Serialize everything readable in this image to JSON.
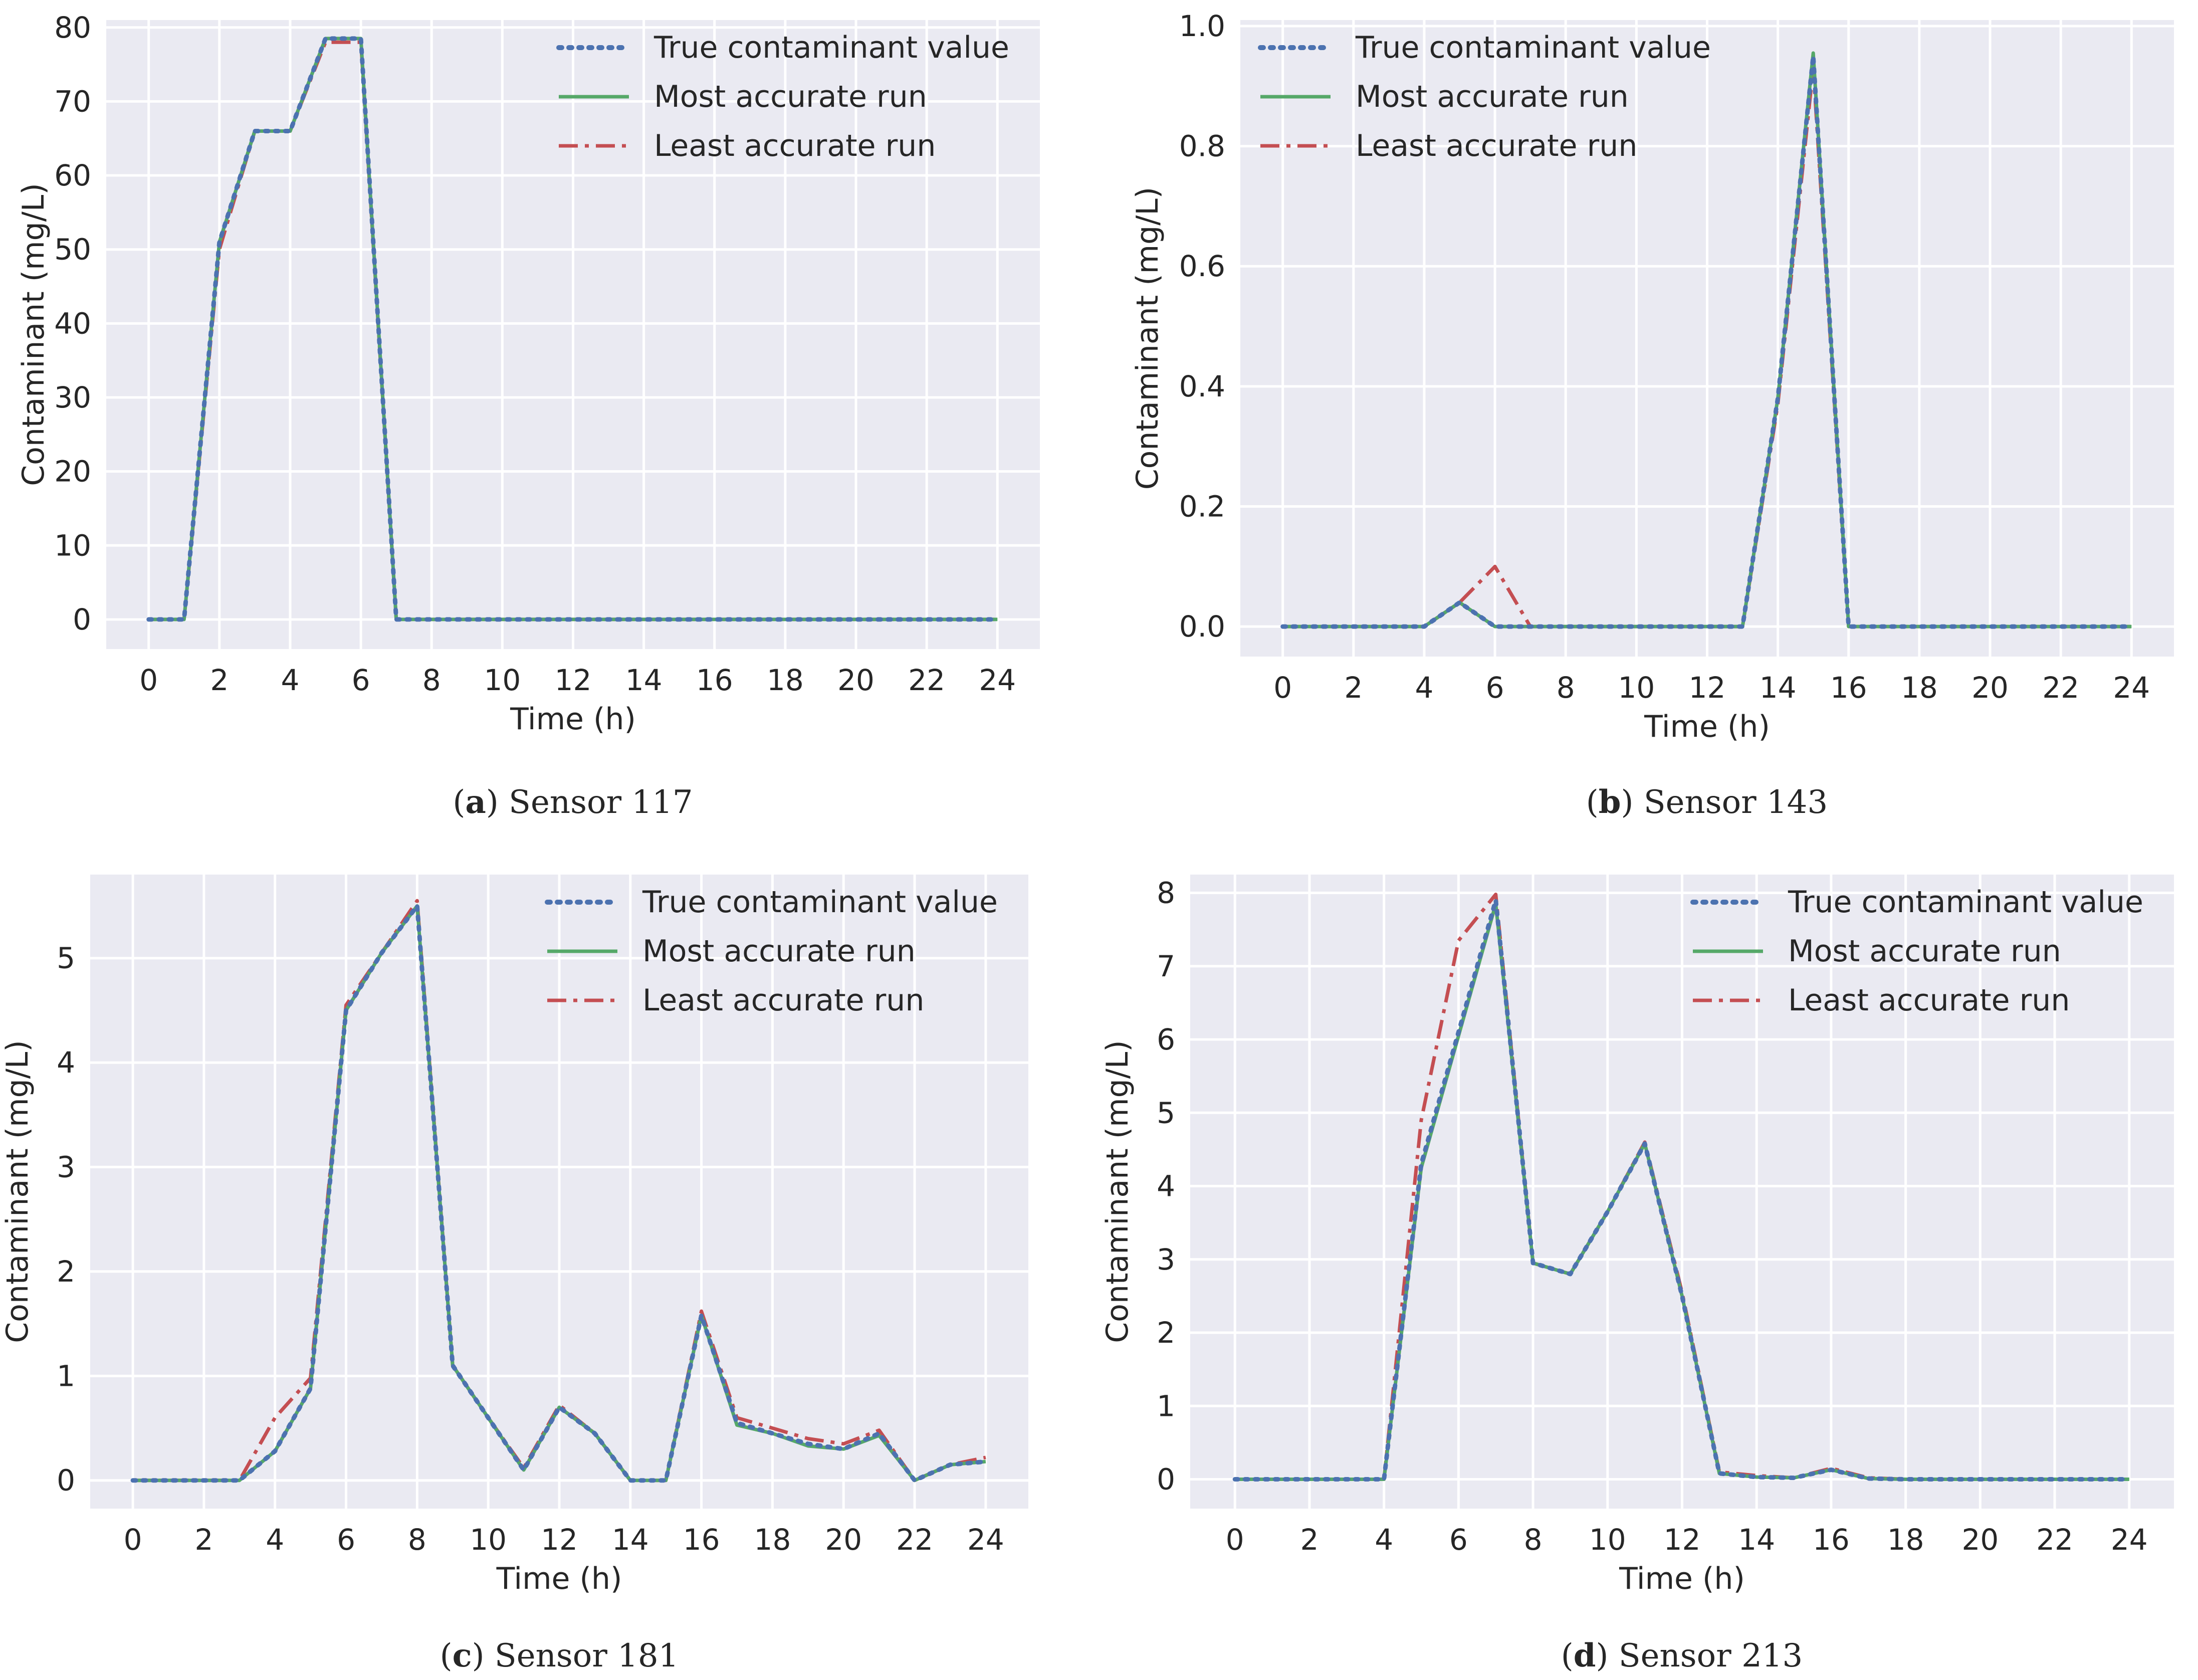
{
  "figure": {
    "colors": {
      "panel_bg": "#EAEAF2",
      "grid": "#FFFFFF",
      "text": "#262626",
      "true_series": "#4C72B0",
      "most_series": "#55A868",
      "least_series": "#C44E52"
    }
  },
  "chart_data": [
    {
      "type": "line",
      "caption_label": "a",
      "caption_text": "Sensor 117",
      "xlabel": "Time (h)",
      "ylabel": "Contaminant (mg/L)",
      "xlim": [
        -1.2,
        25.2
      ],
      "ylim": [
        -4,
        81
      ],
      "xticks": [
        0,
        2,
        4,
        6,
        8,
        10,
        12,
        14,
        16,
        18,
        20,
        22,
        24
      ],
      "yticks": [
        0,
        10,
        20,
        30,
        40,
        50,
        60,
        70,
        80
      ],
      "yticklabels": [
        "0",
        "10",
        "20",
        "30",
        "40",
        "50",
        "60",
        "70",
        "80"
      ],
      "legend_position": "top-right",
      "x": [
        0,
        1,
        2,
        3,
        4,
        5,
        6,
        7,
        8,
        9,
        10,
        11,
        12,
        13,
        14,
        15,
        16,
        17,
        18,
        19,
        20,
        21,
        22,
        23,
        24
      ],
      "series": [
        {
          "name": "True contaminant value",
          "style": "dotted",
          "color": "#4C72B0",
          "values": [
            0,
            0,
            51,
            66,
            66,
            78.5,
            78.5,
            0,
            0,
            0,
            0,
            0,
            0,
            0,
            0,
            0,
            0,
            0,
            0,
            0,
            0,
            0,
            0,
            0,
            0
          ]
        },
        {
          "name": "Most accurate run",
          "style": "solid",
          "color": "#55A868",
          "values": [
            0,
            0,
            51,
            66,
            66,
            78.5,
            78.5,
            0,
            0,
            0,
            0,
            0,
            0,
            0,
            0,
            0,
            0,
            0,
            0,
            0,
            0,
            0,
            0,
            0,
            0
          ]
        },
        {
          "name": "Least accurate run",
          "style": "dashdot",
          "color": "#C44E52",
          "values": [
            0,
            0,
            50,
            66,
            66,
            78,
            78,
            0,
            0,
            0,
            0,
            0,
            0,
            0,
            0,
            0,
            0,
            0,
            0,
            0,
            0,
            0,
            0,
            0,
            0
          ]
        }
      ]
    },
    {
      "type": "line",
      "caption_label": "b",
      "caption_text": "Sensor 143",
      "xlabel": "Time (h)",
      "ylabel": "Contaminant (mg/L)",
      "xlim": [
        -1.2,
        25.2
      ],
      "ylim": [
        -0.05,
        1.01
      ],
      "xticks": [
        0,
        2,
        4,
        6,
        8,
        10,
        12,
        14,
        16,
        18,
        20,
        22,
        24
      ],
      "yticks": [
        0,
        0.2,
        0.4,
        0.6,
        0.8,
        1.0
      ],
      "yticklabels": [
        "0.0",
        "0.2",
        "0.4",
        "0.6",
        "0.8",
        "1.0"
      ],
      "legend_position": "top-left",
      "x": [
        0,
        1,
        2,
        3,
        4,
        5,
        6,
        7,
        8,
        9,
        10,
        11,
        12,
        13,
        14,
        15,
        16,
        17,
        18,
        19,
        20,
        21,
        22,
        23,
        24
      ],
      "series": [
        {
          "name": "True contaminant value",
          "style": "dotted",
          "color": "#4C72B0",
          "values": [
            0,
            0,
            0,
            0,
            0,
            0.04,
            0,
            0,
            0,
            0,
            0,
            0,
            0,
            0,
            0.38,
            0.95,
            0,
            0,
            0,
            0,
            0,
            0,
            0,
            0,
            0
          ]
        },
        {
          "name": "Most accurate run",
          "style": "solid",
          "color": "#55A868",
          "values": [
            0,
            0,
            0,
            0,
            0,
            0.04,
            0,
            0,
            0,
            0,
            0,
            0,
            0,
            0,
            0.38,
            0.955,
            0,
            0,
            0,
            0,
            0,
            0,
            0,
            0,
            0
          ]
        },
        {
          "name": "Least accurate run",
          "style": "dashdot",
          "color": "#C44E52",
          "values": [
            0,
            0,
            0,
            0,
            0,
            0.04,
            0.1,
            0,
            0,
            0,
            0,
            0,
            0,
            0,
            0.37,
            0.93,
            0,
            0,
            0,
            0,
            0,
            0,
            0,
            0,
            0
          ]
        }
      ]
    },
    {
      "type": "line",
      "caption_label": "c",
      "caption_text": "Sensor 181",
      "xlabel": "Time (h)",
      "ylabel": "Contaminant (mg/L)",
      "xlim": [
        -1.2,
        25.2
      ],
      "ylim": [
        -0.27,
        5.8
      ],
      "xticks": [
        0,
        2,
        4,
        6,
        8,
        10,
        12,
        14,
        16,
        18,
        20,
        22,
        24
      ],
      "yticks": [
        0,
        1,
        2,
        3,
        4,
        5
      ],
      "yticklabels": [
        "0",
        "1",
        "2",
        "3",
        "4",
        "5"
      ],
      "legend_position": "top-right",
      "x": [
        0,
        1,
        2,
        3,
        4,
        5,
        6,
        7,
        8,
        9,
        10,
        11,
        12,
        13,
        14,
        15,
        16,
        17,
        18,
        19,
        20,
        21,
        22,
        23,
        24
      ],
      "series": [
        {
          "name": "True contaminant value",
          "style": "dotted",
          "color": "#4C72B0",
          "values": [
            0,
            0,
            0,
            0,
            0.28,
            0.88,
            4.5,
            5.05,
            5.5,
            1.1,
            0.6,
            0.1,
            0.7,
            0.45,
            0,
            0,
            1.58,
            0.55,
            0.45,
            0.35,
            0.3,
            0.45,
            0,
            0.15,
            0.18
          ]
        },
        {
          "name": "Most accurate run",
          "style": "solid",
          "color": "#55A868",
          "values": [
            0,
            0,
            0,
            0,
            0.28,
            0.88,
            4.5,
            5.05,
            5.5,
            1.1,
            0.6,
            0.1,
            0.7,
            0.45,
            0,
            0,
            1.58,
            0.53,
            0.45,
            0.33,
            0.3,
            0.43,
            0,
            0.15,
            0.18
          ]
        },
        {
          "name": "Least accurate run",
          "style": "dashdot",
          "color": "#C44E52",
          "values": [
            0,
            0,
            0,
            0,
            0.6,
            0.98,
            4.55,
            5.05,
            5.55,
            1.1,
            0.6,
            0.12,
            0.72,
            0.45,
            0,
            0,
            1.62,
            0.6,
            0.5,
            0.4,
            0.35,
            0.48,
            0,
            0.15,
            0.22
          ]
        }
      ]
    },
    {
      "type": "line",
      "caption_label": "d",
      "caption_text": "Sensor 213",
      "xlabel": "Time (h)",
      "ylabel": "Contaminant (mg/L)",
      "xlim": [
        -1.2,
        25.2
      ],
      "ylim": [
        -0.4,
        8.25
      ],
      "xticks": [
        0,
        2,
        4,
        6,
        8,
        10,
        12,
        14,
        16,
        18,
        20,
        22,
        24
      ],
      "yticks": [
        0,
        1,
        2,
        3,
        4,
        5,
        6,
        7,
        8
      ],
      "yticklabels": [
        "0",
        "1",
        "2",
        "3",
        "4",
        "5",
        "6",
        "7",
        "8"
      ],
      "legend_position": "top-right",
      "x": [
        0,
        1,
        2,
        3,
        4,
        5,
        6,
        7,
        8,
        9,
        10,
        11,
        12,
        13,
        14,
        15,
        16,
        17,
        18,
        19,
        20,
        21,
        22,
        23,
        24
      ],
      "series": [
        {
          "name": "True contaminant value",
          "style": "dotted",
          "color": "#4C72B0",
          "values": [
            0,
            0,
            0,
            0,
            0,
            4.3,
            6.1,
            7.9,
            2.95,
            2.8,
            3.65,
            4.58,
            2.5,
            0.08,
            0.03,
            0.02,
            0.13,
            0.01,
            0,
            0,
            0,
            0,
            0,
            0,
            0
          ]
        },
        {
          "name": "Most accurate run",
          "style": "solid",
          "color": "#55A868",
          "values": [
            0,
            0,
            0,
            0,
            0,
            4.25,
            6.05,
            7.85,
            2.95,
            2.8,
            3.65,
            4.58,
            2.5,
            0.08,
            0.03,
            0.02,
            0.13,
            0.01,
            0,
            0,
            0,
            0,
            0,
            0,
            0
          ]
        },
        {
          "name": "Least accurate run",
          "style": "dashdot",
          "color": "#C44E52",
          "values": [
            0,
            0,
            0,
            0,
            0,
            4.9,
            7.35,
            7.98,
            2.95,
            2.8,
            3.65,
            4.6,
            2.55,
            0.1,
            0.05,
            0.02,
            0.15,
            0.02,
            0,
            0,
            0,
            0,
            0,
            0,
            0
          ]
        }
      ]
    }
  ]
}
